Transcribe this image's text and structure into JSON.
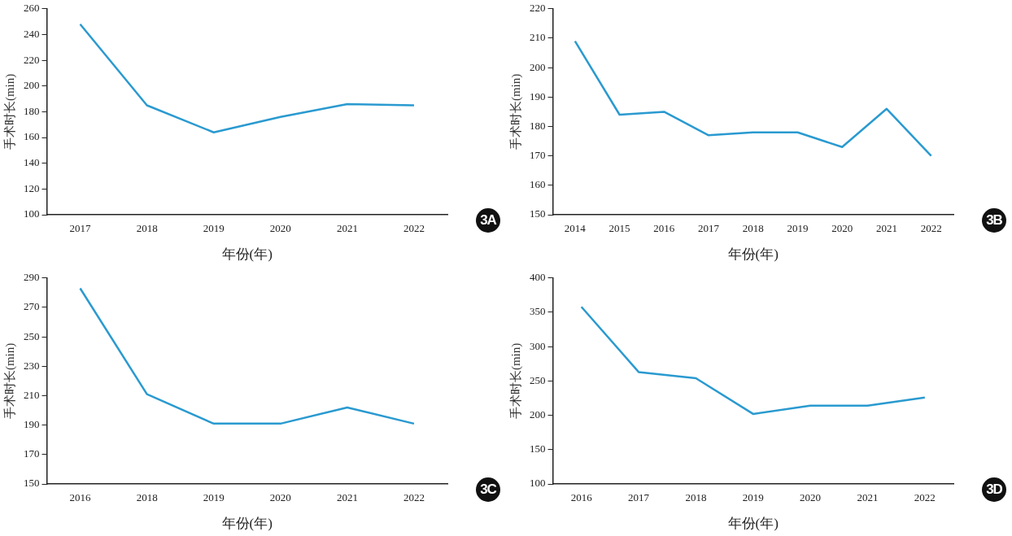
{
  "chart_data": [
    {
      "type": "line",
      "categories": [
        "2017",
        "2018",
        "2019",
        "2020",
        "2021",
        "2022"
      ],
      "series": [
        {
          "color": "#2a9ad0",
          "values": [
            248,
            185,
            164,
            176,
            186,
            185
          ]
        }
      ],
      "xlabel": "年份(年)",
      "ylabel": "手术时长(min)",
      "ylim": [
        100,
        260
      ],
      "yticks": [
        100,
        120,
        140,
        160,
        180,
        200,
        220,
        240,
        260
      ],
      "grid": false,
      "legend": false,
      "marker": "none",
      "annotations": [
        "3A"
      ]
    },
    {
      "type": "line",
      "categories": [
        "2014",
        "2015",
        "2016",
        "2017",
        "2018",
        "2019",
        "2020",
        "2021",
        "2022"
      ],
      "series": [
        {
          "color": "#2a9ad0",
          "values": [
            209,
            184,
            185,
            177,
            178,
            178,
            173,
            186,
            170
          ]
        }
      ],
      "xlabel": "年份(年)",
      "ylabel": "手术时长(min)",
      "ylim": [
        150,
        220
      ],
      "yticks": [
        150,
        160,
        170,
        180,
        190,
        200,
        210,
        220
      ],
      "grid": false,
      "legend": false,
      "marker": "none",
      "annotations": [
        "3B"
      ]
    },
    {
      "type": "line",
      "categories": [
        "2016",
        "2018",
        "2019",
        "2020",
        "2021",
        "2022"
      ],
      "series": [
        {
          "color": "#2a9ad0",
          "values": [
            283,
            211,
            191,
            191,
            202,
            191
          ]
        }
      ],
      "xlabel": "年份(年)",
      "ylabel": "手术时长(min)",
      "ylim": [
        150,
        290
      ],
      "yticks": [
        150,
        170,
        190,
        210,
        230,
        250,
        270,
        290
      ],
      "grid": false,
      "legend": false,
      "marker": "none",
      "annotations": [
        "3C"
      ]
    },
    {
      "type": "line",
      "categories": [
        "2016",
        "2017",
        "2018",
        "2019",
        "2020",
        "2021",
        "2022"
      ],
      "series": [
        {
          "color": "#2a9ad0",
          "values": [
            358,
            263,
            254,
            202,
            214,
            214,
            226
          ]
        }
      ],
      "xlabel": "年份(年)",
      "ylabel": "手术时长(min)",
      "ylim": [
        100,
        400
      ],
      "yticks": [
        100,
        150,
        200,
        250,
        300,
        350,
        400
      ],
      "grid": false,
      "legend": false,
      "marker": "none",
      "annotations": [
        "3D"
      ]
    }
  ]
}
